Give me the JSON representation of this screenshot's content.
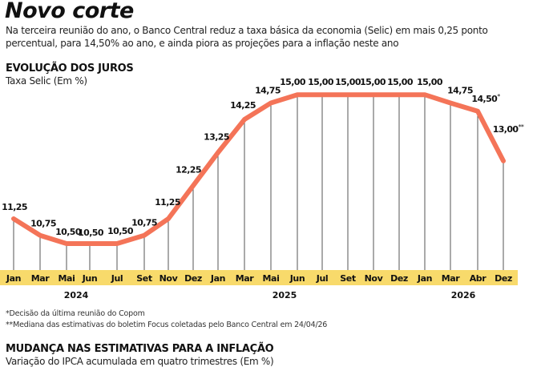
{
  "header": {
    "title": "Novo corte",
    "subtitle": "Na terceira reunião do ano, o Banco Central reduz a taxa básica da economia (Selic) em mais 0,25 ponto percentual, para 14,50% ao ano, e ainda piora as projeções para a inflação neste ano"
  },
  "section1": {
    "title": "EVOLUÇÃO DOS JUROS",
    "subtitle": "Taxa Selic (Em %)"
  },
  "footnotes": {
    "f1": "*Decisão da última reunião do Copom",
    "f2": "**Mediana das estimativas do boletim Focus coletadas pelo Banco Central em 24/04/26"
  },
  "section2": {
    "title": "MUDANÇA NAS ESTIMATIVAS PARA A INFLAÇÃO",
    "subtitle": "Variação do IPCA acumulada em quatro trimestres (Em %)"
  },
  "colors": {
    "line": "#F47458",
    "band": "#F8DA6B",
    "gridline": "#555555",
    "text": "#111111"
  },
  "chart_data": {
    "type": "line",
    "title": "EVOLUÇÃO DOS JUROS",
    "subtitle": "Taxa Selic (Em %)",
    "xlabel": "",
    "ylabel": "Taxa Selic (Em %)",
    "grid": "vertical drop lines at each point",
    "categories": [
      "Jan",
      "Mar",
      "Mai",
      "Jun",
      "Jul",
      "Set",
      "Nov",
      "Dez",
      "Jan",
      "Mar",
      "Mai",
      "Jun",
      "Jul",
      "Set",
      "Nov",
      "Dez",
      "Jan",
      "Mar",
      "Abr",
      "Dez"
    ],
    "years": [
      {
        "label": "2024",
        "center_index": 3
      },
      {
        "label": "2025",
        "center_index": 11
      },
      {
        "label": "2026",
        "center_index": 17.5
      }
    ],
    "series": [
      {
        "name": "Selic",
        "values": [
          11.25,
          10.75,
          10.5,
          10.5,
          10.5,
          10.75,
          11.25,
          12.25,
          13.25,
          14.25,
          14.75,
          15.0,
          15.0,
          15.0,
          15.0,
          15.0,
          15.0,
          14.75,
          14.5,
          13.0
        ],
        "labels": [
          "11,25",
          "10,75",
          "10,50",
          "10,50",
          "10,50",
          "10,75",
          "11,25",
          "12,25",
          "13,25",
          "14,25",
          "14,75",
          "15,00",
          "15,00",
          "15,00",
          "15,00",
          "15,00",
          "15,00",
          "14,75",
          "14,50*",
          "13,00**"
        ]
      }
    ],
    "annotations": [
      {
        "point": "Abr 2026",
        "marker": "*",
        "note": "Decisão da última reunião do Copom"
      },
      {
        "point": "Dez 2026",
        "marker": "**",
        "note": "Mediana das estimativas do boletim Focus coletadas pelo Banco Central em 24/04/26"
      }
    ],
    "ylim": [
      10.0,
      15.5
    ]
  }
}
